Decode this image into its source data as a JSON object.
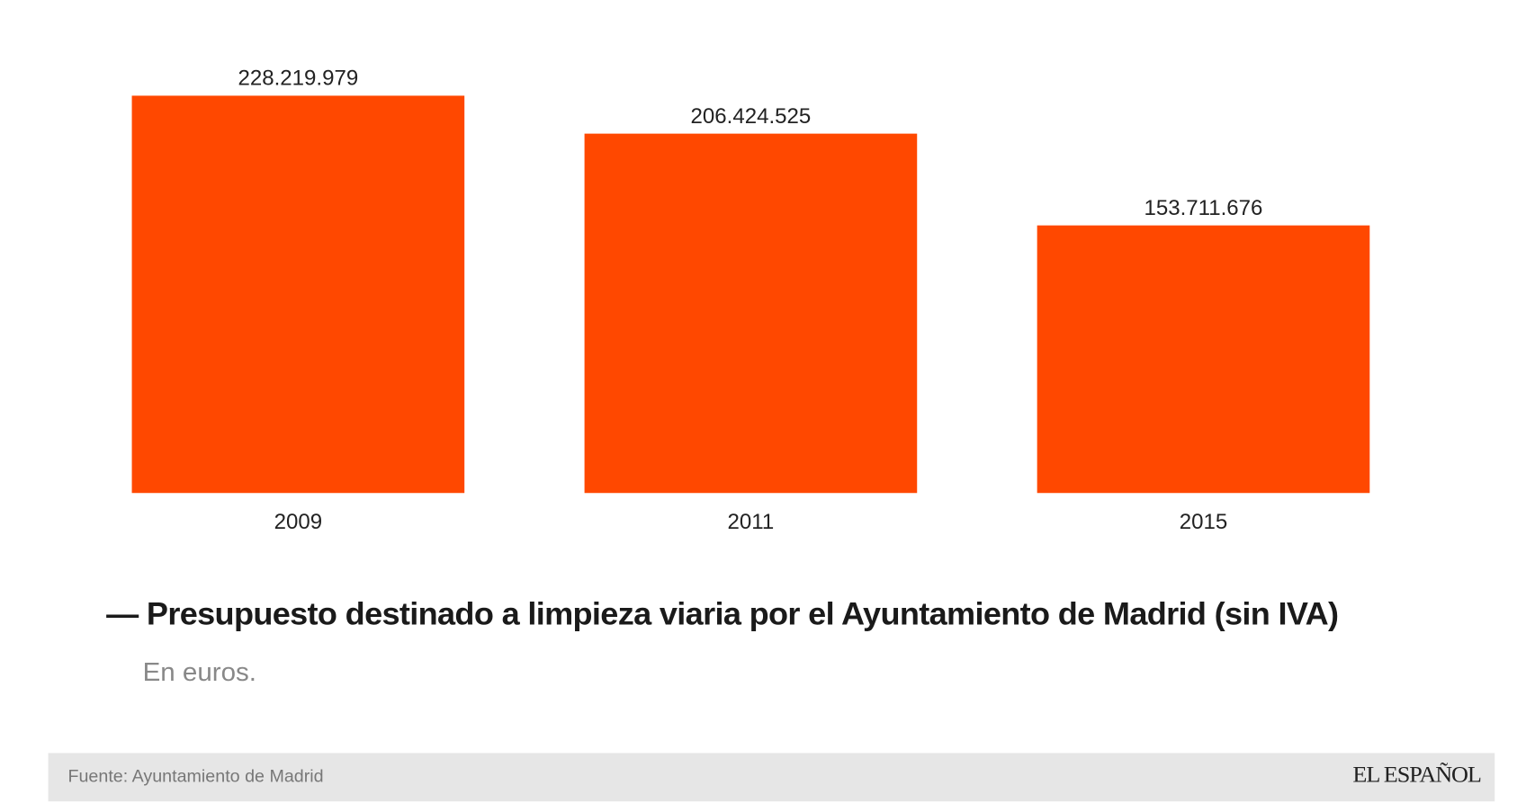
{
  "chart_data": {
    "type": "bar",
    "categories": [
      "2009",
      "2011",
      "2015"
    ],
    "values": [
      228219979,
      206424525,
      153711676
    ],
    "value_labels": [
      "228.219.979",
      "206.424.525",
      "153.711.676"
    ],
    "title": "Presupuesto destinado a limpieza viaria por el Ayuntamiento de Madrid (sin IVA)",
    "subtitle": "En euros.",
    "xlabel": "",
    "ylabel": "",
    "ylim": [
      0,
      228219979
    ],
    "grid": false,
    "bar_color": "#ff4800"
  },
  "header": {
    "dash": "—"
  },
  "footer": {
    "source": "Fuente: Ayuntamiento de Madrid",
    "logo": "EL ESPAÑOL"
  }
}
